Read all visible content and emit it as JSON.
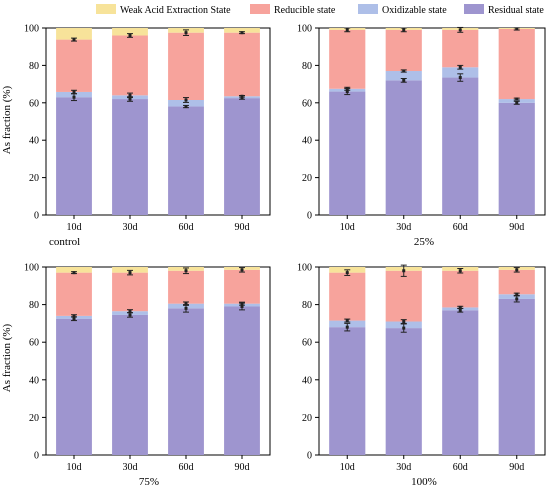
{
  "legend": {
    "entries": [
      {
        "label": "Weak Acid Extraction State",
        "color": "#f7e39a"
      },
      {
        "label": "Reducible state",
        "color": "#f7a39c"
      },
      {
        "label": "Oxidizable state",
        "color": "#aebfe8"
      },
      {
        "label": "Residual state",
        "color": "#9e95cf"
      }
    ]
  },
  "chart_data": [
    {
      "type": "bar",
      "stacked": true,
      "title": "control",
      "ylabel": "As fraction (%)",
      "xlabel": "",
      "ylim": [
        0,
        100
      ],
      "yticks": [
        0,
        20,
        40,
        60,
        80,
        100
      ],
      "categories": [
        "10d",
        "30d",
        "60d",
        "90d"
      ],
      "series": [
        {
          "name": "Residual state",
          "values": [
            63,
            62,
            58,
            62.5
          ],
          "err": [
            1.8,
            1.2,
            0.6,
            0.6
          ]
        },
        {
          "name": "Oxidizable state",
          "values": [
            2.8,
            2.0,
            3.5,
            1.0
          ],
          "err": [
            0.9,
            1.2,
            1.3,
            0.4
          ]
        },
        {
          "name": "Reducible state",
          "values": [
            28,
            32,
            36,
            34
          ],
          "err": [
            0.8,
            1.0,
            1.5,
            0.5
          ]
        },
        {
          "name": "Weak Acid Extraction State",
          "values": [
            6.2,
            4.0,
            2.5,
            2.5
          ],
          "err": [
            0,
            0,
            0,
            0
          ]
        }
      ]
    },
    {
      "type": "bar",
      "stacked": true,
      "title": "25%",
      "ylabel": "",
      "xlabel": "",
      "ylim": [
        0,
        100
      ],
      "yticks": [
        0,
        20,
        40,
        60,
        80,
        100
      ],
      "categories": [
        "10d",
        "30d",
        "60d",
        "90d"
      ],
      "series": [
        {
          "name": "Residual state",
          "values": [
            66,
            72,
            73.5,
            60
          ],
          "err": [
            1.6,
            1.0,
            2.0,
            0.8
          ]
        },
        {
          "name": "Oxidizable state",
          "values": [
            1.5,
            5.0,
            5.5,
            2.0
          ],
          "err": [
            0.8,
            0.6,
            1.0,
            0.5
          ]
        },
        {
          "name": "Reducible state",
          "values": [
            31.5,
            22,
            20,
            37.5
          ],
          "err": [
            1.0,
            1.0,
            1.3,
            0.6
          ]
        },
        {
          "name": "Weak Acid Extraction State",
          "values": [
            1.0,
            1.0,
            1.0,
            0.5
          ],
          "err": [
            0,
            0,
            0,
            0
          ]
        }
      ]
    },
    {
      "type": "bar",
      "stacked": true,
      "title": "75%",
      "ylabel": "As fraction (%)",
      "xlabel": "",
      "ylim": [
        0,
        100
      ],
      "yticks": [
        0,
        20,
        40,
        60,
        80,
        100
      ],
      "categories": [
        "10d",
        "30d",
        "60d",
        "90d"
      ],
      "series": [
        {
          "name": "Residual state",
          "values": [
            72.5,
            74.5,
            78,
            79
          ],
          "err": [
            1.0,
            1.2,
            2.0,
            1.8
          ]
        },
        {
          "name": "Oxidizable state",
          "values": [
            1.5,
            2.0,
            2.5,
            1.5
          ],
          "err": [
            0.6,
            0.8,
            0.9,
            0.8
          ]
        },
        {
          "name": "Reducible state",
          "values": [
            23,
            20.5,
            17.5,
            18
          ],
          "err": [
            0.5,
            1.2,
            1.5,
            1.2
          ]
        },
        {
          "name": "Weak Acid Extraction State",
          "values": [
            3.0,
            3.0,
            2.0,
            1.5
          ],
          "err": [
            0,
            0,
            0,
            0
          ]
        }
      ]
    },
    {
      "type": "bar",
      "stacked": true,
      "title": "100%",
      "ylabel": "",
      "xlabel": "",
      "ylim": [
        0,
        100
      ],
      "yticks": [
        0,
        20,
        40,
        60,
        80,
        100
      ],
      "categories": [
        "10d",
        "30d",
        "60d",
        "90d"
      ],
      "series": [
        {
          "name": "Residual state",
          "values": [
            68,
            67.5,
            77,
            83
          ],
          "err": [
            2.0,
            2.2,
            1.0,
            1.6
          ]
        },
        {
          "name": "Oxidizable state",
          "values": [
            3.5,
            3.5,
            1.5,
            2.5
          ],
          "err": [
            0.8,
            1.0,
            0.6,
            0.6
          ]
        },
        {
          "name": "Reducible state",
          "values": [
            25.5,
            27,
            19.5,
            13
          ],
          "err": [
            1.5,
            3.0,
            1.2,
            1.2
          ]
        },
        {
          "name": "Weak Acid Extraction State",
          "values": [
            3.0,
            2.0,
            2.0,
            1.5
          ],
          "err": [
            0,
            0,
            0,
            0
          ]
        }
      ]
    }
  ]
}
